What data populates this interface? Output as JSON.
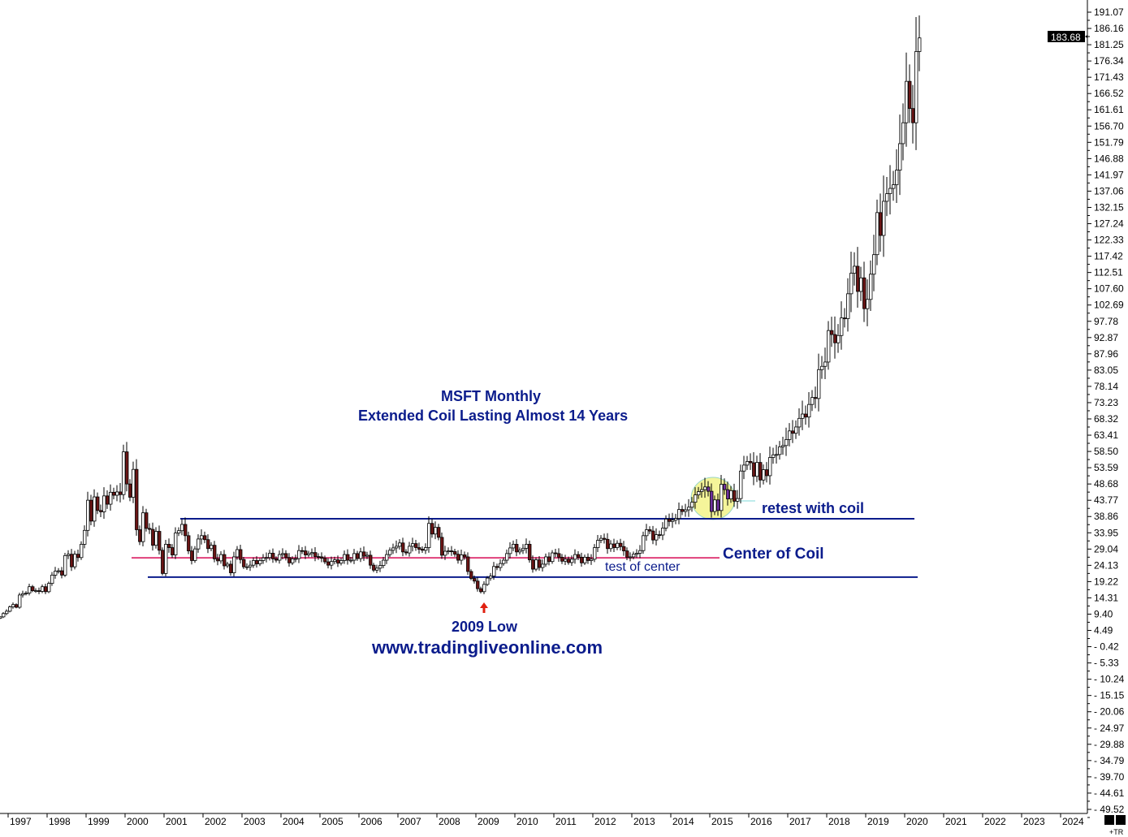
{
  "chart_data": {
    "type": "candlestick",
    "title": "MSFT Monthly",
    "subtitle": "Extended Coil Lasting Almost 14 Years",
    "start_month": "1996-10",
    "end_month": "2020-05",
    "closes": [
      8.6,
      9.6,
      10.3,
      11.6,
      12.3,
      11.5,
      15.2,
      15.6,
      15.8,
      17.7,
      16.5,
      16.5,
      16.3,
      17.7,
      16.2,
      18.7,
      21.2,
      22.4,
      22.5,
      21.2,
      27.1,
      27.5,
      23.7,
      27.5,
      26.5,
      30.5,
      34.7,
      43.8,
      37.5,
      44.8,
      40.7,
      40.3,
      45.1,
      42.6,
      46.2,
      45.3,
      46.3,
      45.5,
      58.4,
      48.7,
      44.7,
      53.1,
      34.9,
      31.3,
      40.0,
      35.3,
      35.0,
      30.2,
      34.4,
      28.7,
      21.7,
      30.5,
      29.5,
      27.3,
      33.9,
      34.6,
      36.5,
      33.1,
      28.5,
      25.6,
      29.1,
      32.1,
      33.1,
      31.9,
      29.2,
      30.2,
      26.1,
      25.5,
      27.4,
      24.0,
      24.5,
      21.9,
      26.7,
      28.9,
      25.9,
      23.7,
      23.7,
      24.2,
      25.6,
      24.6,
      25.6,
      26.4,
      26.5,
      27.8,
      26.1,
      25.7,
      27.4,
      27.7,
      26.5,
      24.9,
      26.1,
      26.2,
      28.6,
      28.5,
      27.3,
      27.7,
      28.0,
      26.8,
      26.7,
      26.3,
      25.2,
      24.2,
      25.3,
      25.8,
      24.8,
      25.6,
      27.4,
      25.7,
      25.7,
      27.7,
      26.2,
      28.2,
      26.9,
      27.2,
      24.2,
      22.7,
      23.3,
      24.1,
      25.7,
      27.4,
      28.7,
      29.4,
      29.9,
      30.9,
      28.2,
      27.9,
      29.9,
      30.7,
      29.5,
      29.0,
      28.7,
      29.5,
      36.8,
      33.6,
      35.6,
      32.6,
      27.2,
      28.4,
      28.5,
      28.3,
      27.5,
      25.7,
      27.3,
      26.7,
      22.3,
      20.2,
      19.4,
      17.1,
      16.2,
      18.4,
      20.3,
      20.9,
      23.8,
      23.5,
      24.7,
      25.7,
      27.7,
      29.4,
      30.5,
      28.2,
      28.7,
      29.3,
      30.5,
      25.8,
      23.0,
      25.8,
      23.5,
      24.5,
      26.7,
      25.3,
      27.9,
      27.7,
      26.6,
      25.4,
      26.0,
      25.0,
      26.0,
      27.4,
      26.6,
      24.9,
      26.6,
      25.6,
      26.0,
      29.5,
      31.7,
      32.3,
      32.0,
      29.2,
      30.6,
      29.5,
      30.8,
      29.8,
      28.5,
      26.6,
      26.7,
      27.5,
      27.8,
      28.6,
      33.1,
      34.9,
      34.5,
      31.8,
      33.4,
      33.3,
      35.4,
      38.1,
      37.4,
      37.8,
      38.3,
      41.0,
      40.4,
      40.9,
      41.7,
      43.2,
      45.4,
      46.4,
      47.0,
      47.8,
      46.5,
      40.4,
      43.9,
      40.7,
      48.6,
      47.0,
      44.2,
      46.7,
      43.5,
      44.3,
      52.6,
      54.4,
      55.5,
      55.1,
      51.0,
      55.2,
      49.9,
      53.0,
      51.2,
      56.7,
      57.5,
      57.6,
      59.9,
      60.3,
      62.1,
      64.7,
      64.0,
      65.9,
      68.5,
      69.8,
      68.9,
      72.7,
      74.8,
      74.5,
      83.2,
      84.2,
      85.5,
      95.0,
      93.8,
      91.3,
      93.5,
      98.8,
      98.6,
      106.1,
      112.3,
      114.4,
      106.8,
      110.9,
      101.6,
      104.4,
      112.0,
      117.9,
      130.6,
      123.7,
      134.0,
      136.3,
      137.9,
      139.0,
      143.4,
      151.4,
      157.7,
      170.2,
      162.0,
      157.7,
      179.2,
      183.3
    ],
    "x_tick_labels": [
      "1997",
      "1998",
      "1999",
      "2000",
      "2001",
      "2002",
      "2003",
      "2004",
      "2005",
      "2006",
      "2007",
      "2008",
      "2009",
      "2010",
      "2011",
      "2012",
      "2013",
      "2014",
      "2015",
      "2016",
      "2017",
      "2018",
      "2019",
      "2020",
      "2021",
      "2022",
      "2023",
      "2024"
    ],
    "y_tick_labels": [
      "191.07",
      "186.16",
      "181.25",
      "176.34",
      "171.43",
      "166.52",
      "161.61",
      "156.70",
      "151.79",
      "146.88",
      "141.97",
      "137.06",
      "132.15",
      "127.24",
      "122.33",
      "117.42",
      "112.51",
      "107.60",
      "102.69",
      "97.78",
      "92.87",
      "87.96",
      "83.05",
      "78.14",
      "73.23",
      "68.32",
      "63.41",
      "58.50",
      "53.59",
      "48.68",
      "43.77",
      "38.86",
      "33.95",
      "29.04",
      "24.13",
      "19.22",
      "14.31",
      "9.40",
      "4.49",
      "- 0.42",
      "- 5.33",
      "- 10.24",
      "- 15.15",
      "- 20.06",
      "- 24.97",
      "- 29.88",
      "- 34.79",
      "- 39.70",
      "- 44.61",
      "- 49.52"
    ],
    "ylim": [
      -49.52,
      191.07
    ],
    "last_price": "183.68",
    "colors": {
      "up": "#ffffff",
      "down": "#6b1515",
      "highlight_down": "#7030a0",
      "line": "#0b1c8c",
      "center": "#e0407a",
      "circle": "#f5f59a",
      "arrow": "#e02010"
    },
    "highlight_range": [
      "2014-06",
      "2015-07"
    ],
    "levels": [
      {
        "name": "coil top",
        "value": 38.2,
        "from": "2001-06",
        "to": "2020-03",
        "color": "#0b1c8c"
      },
      {
        "name": "center of coil",
        "value": 26.4,
        "from": "2000-03",
        "to": "2015-03",
        "color": "#e0407a"
      },
      {
        "name": "coil bottom",
        "value": 20.6,
        "from": "2000-08",
        "to": "2020-04",
        "color": "#0b1c8c"
      }
    ],
    "annotations": {
      "retest": "retest with coil",
      "center": "Center of Coil",
      "test_center": "test of center",
      "low": "2009 Low",
      "site": "www.tradingliveonline.com"
    }
  },
  "footer": {
    "tr_label": "+TR"
  }
}
